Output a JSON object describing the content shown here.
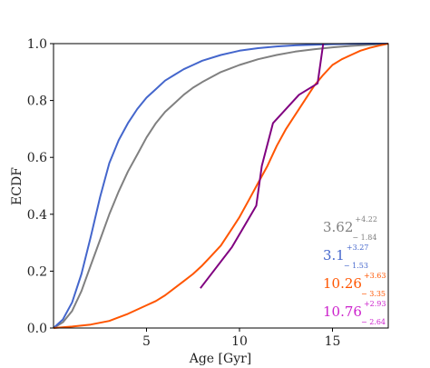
{
  "chart_data": {
    "type": "line",
    "xlabel": "Age [Gyr]",
    "ylabel": "ECDF",
    "xlim": [
      0,
      18
    ],
    "ylim": [
      0,
      1
    ],
    "xticks": [
      5,
      10,
      15
    ],
    "yticks": [
      0.0,
      0.2,
      0.4,
      0.6,
      0.8,
      1.0
    ],
    "xtick_labels": [
      "5",
      "10",
      "15"
    ],
    "ytick_labels": [
      "0.0",
      "0.2",
      "0.4",
      "0.6",
      "0.8",
      "1.0"
    ],
    "grid": false,
    "series": [
      {
        "color": "#808080",
        "x": [
          0,
          0.5,
          1,
          1.5,
          2,
          2.5,
          3,
          3.5,
          4,
          4.5,
          5,
          5.5,
          6,
          6.5,
          7,
          7.5,
          8,
          9,
          10,
          11,
          12,
          13,
          14,
          15,
          16,
          17,
          18
        ],
        "y": [
          0,
          0.02,
          0.06,
          0.13,
          0.22,
          0.31,
          0.4,
          0.48,
          0.55,
          0.61,
          0.67,
          0.72,
          0.76,
          0.79,
          0.82,
          0.845,
          0.865,
          0.9,
          0.925,
          0.945,
          0.96,
          0.972,
          0.98,
          0.987,
          0.992,
          0.996,
          1.0
        ]
      },
      {
        "color": "#4466cc",
        "x": [
          0,
          0.5,
          1,
          1.5,
          2,
          2.5,
          3,
          3.5,
          4,
          4.5,
          5,
          5.5,
          6,
          6.5,
          7,
          7.5,
          8,
          9,
          10,
          11,
          12,
          13,
          14,
          15,
          16,
          17,
          18
        ],
        "y": [
          0,
          0.03,
          0.09,
          0.19,
          0.32,
          0.46,
          0.58,
          0.66,
          0.72,
          0.77,
          0.81,
          0.84,
          0.87,
          0.89,
          0.91,
          0.925,
          0.94,
          0.96,
          0.975,
          0.984,
          0.99,
          0.994,
          0.996,
          0.998,
          0.999,
          1.0,
          1.0
        ]
      },
      {
        "color": "#ff5500",
        "x": [
          0,
          1,
          2,
          3,
          4,
          5,
          5.5,
          6,
          6.5,
          7,
          7.5,
          8,
          8.5,
          9,
          9.5,
          10,
          10.5,
          11,
          11.5,
          12,
          12.5,
          13,
          13.5,
          14,
          14.5,
          15,
          15.5,
          16,
          16.5,
          17,
          17.5,
          18
        ],
        "y": [
          0,
          0.005,
          0.012,
          0.025,
          0.05,
          0.08,
          0.095,
          0.115,
          0.14,
          0.165,
          0.19,
          0.22,
          0.255,
          0.29,
          0.34,
          0.39,
          0.45,
          0.51,
          0.57,
          0.64,
          0.7,
          0.75,
          0.8,
          0.85,
          0.89,
          0.925,
          0.945,
          0.96,
          0.975,
          0.985,
          0.993,
          1.0
        ]
      },
      {
        "color": "#800080",
        "x": [
          7.9,
          9.6,
          10.9,
          11.2,
          11.8,
          13.2,
          14.2,
          14.5
        ],
        "y": [
          0.14,
          0.285,
          0.43,
          0.57,
          0.72,
          0.82,
          0.86,
          1.0
        ]
      }
    ],
    "annotations": [
      {
        "value": "3.62",
        "plus": "+4.22",
        "minus": "− 1.84",
        "color": "#808080"
      },
      {
        "value": "3.1",
        "plus": "+3.27",
        "minus": "− 1.53",
        "color": "#4466cc"
      },
      {
        "value": "10.26",
        "plus": "+3.63",
        "minus": "− 3.35",
        "color": "#ff5500"
      },
      {
        "value": "10.76",
        "plus": "+2.93",
        "minus": "− 2.64",
        "color": "#cc22cc"
      }
    ]
  }
}
